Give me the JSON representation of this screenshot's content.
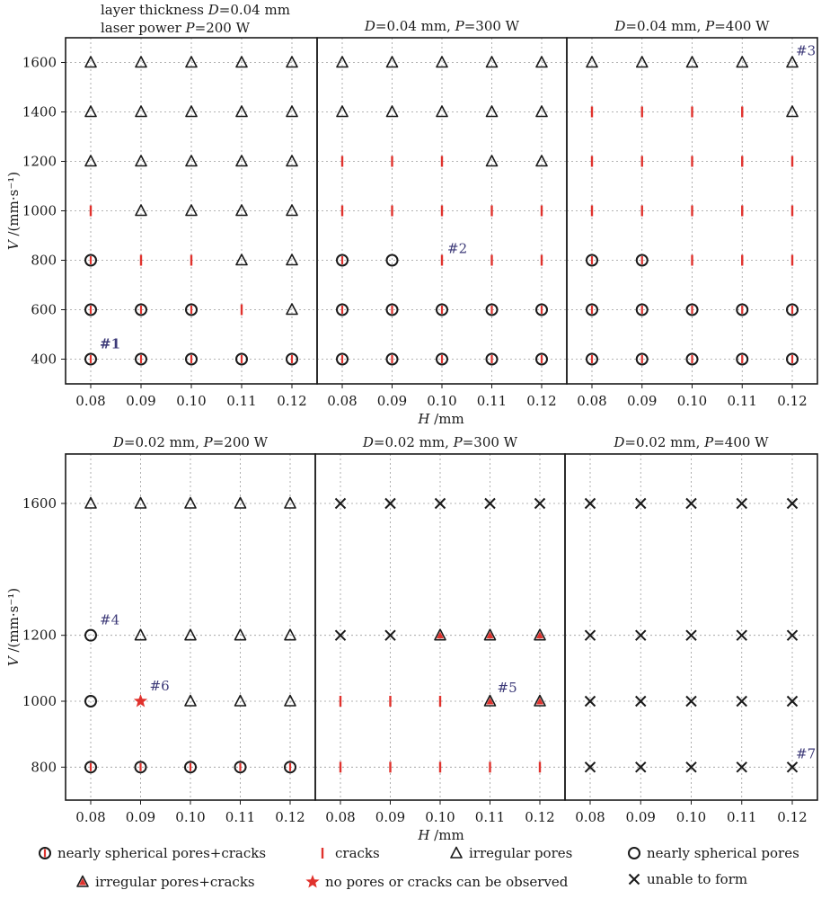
{
  "chart_data": {
    "type": "scatter",
    "x_label": "H /mm",
    "y_label": "V /(mm·s⁻¹)",
    "x_ticks": [
      "0.08",
      "0.09",
      "0.10",
      "0.11",
      "0.12"
    ],
    "x_values": [
      0.08,
      0.09,
      0.1,
      0.11,
      0.12
    ],
    "colors": {
      "red": "#e0322d",
      "black": "#1a1a1a",
      "grid": "#9a9a9a",
      "annot": "#3d3a78"
    },
    "legend": [
      {
        "code": "SC",
        "label": "nearly spherical pores+cracks"
      },
      {
        "code": "C",
        "label": "cracks"
      },
      {
        "code": "T",
        "label": "irregular pores"
      },
      {
        "code": "S",
        "label": "nearly spherical pores"
      },
      {
        "code": "TC",
        "label": "irregular pores+cracks"
      },
      {
        "code": "ST",
        "label": "no pores or cracks can be observed"
      },
      {
        "code": "X",
        "label": "unable to form"
      }
    ],
    "rows": [
      {
        "y_ticks": [
          400,
          600,
          800,
          1000,
          1200,
          1400,
          1600
        ],
        "y_range": [
          300,
          1700
        ],
        "panels": [
          {
            "title_lines": [
              "layer thickness D=0.04 mm",
              "laser power P=200 W"
            ],
            "grid": {
              "1600": [
                "T",
                "T",
                "T",
                "T",
                "T"
              ],
              "1400": [
                "T",
                "T",
                "T",
                "T",
                "T"
              ],
              "1200": [
                "T",
                "T",
                "T",
                "T",
                "T"
              ],
              "1000": [
                "C",
                "T",
                "T",
                "T",
                "T"
              ],
              "800": [
                "SC",
                "C",
                "C",
                "T",
                "T"
              ],
              "600": [
                "SC",
                "SC",
                "SC",
                "C",
                "T"
              ],
              "400": [
                "SC",
                "SC",
                "SC",
                "SC",
                "SC"
              ]
            },
            "annotations": [
              {
                "text": "#1",
                "x": 0.08,
                "y": 400
              }
            ]
          },
          {
            "title": "D=0.04 mm, P=300 W",
            "grid": {
              "1600": [
                "T",
                "T",
                "T",
                "T",
                "T"
              ],
              "1400": [
                "T",
                "T",
                "T",
                "T",
                "T"
              ],
              "1200": [
                "C",
                "C",
                "C",
                "T",
                "T"
              ],
              "1000": [
                "C",
                "C",
                "C",
                "C",
                "C"
              ],
              "800": [
                "SC",
                "S",
                "C",
                "C",
                "C"
              ],
              "600": [
                "SC",
                "SC",
                "SC",
                "SC",
                "SC"
              ],
              "400": [
                "SC",
                "SC",
                "SC",
                "SC",
                "SC"
              ]
            },
            "annotations": [
              {
                "text": "#2",
                "x": 0.1,
                "y": 800
              }
            ]
          },
          {
            "title": "D=0.04 mm, P=400 W",
            "grid": {
              "1600": [
                "T",
                "T",
                "T",
                "T",
                "T"
              ],
              "1400": [
                "C",
                "C",
                "C",
                "C",
                "T"
              ],
              "1200": [
                "C",
                "C",
                "C",
                "C",
                "C"
              ],
              "1000": [
                "C",
                "C",
                "C",
                "C",
                "C"
              ],
              "800": [
                "SC",
                "SC",
                "C",
                "C",
                "C"
              ],
              "600": [
                "SC",
                "SC",
                "SC",
                "SC",
                "SC"
              ],
              "400": [
                "SC",
                "SC",
                "SC",
                "SC",
                "SC"
              ]
            },
            "annotations": [
              {
                "text": "#3",
                "x": 0.12,
                "y": 1600
              }
            ]
          }
        ]
      },
      {
        "y_ticks": [
          800,
          1000,
          1200,
          1600
        ],
        "y_range": [
          700,
          1750
        ],
        "panels": [
          {
            "title": "D=0.02 mm, P=200 W",
            "grid": {
              "1600": [
                "T",
                "T",
                "T",
                "T",
                "T"
              ],
              "1200": [
                "S",
                "T",
                "T",
                "T",
                "T"
              ],
              "1000": [
                "S",
                "ST",
                "T",
                "T",
                "T"
              ],
              "800": [
                "SC",
                "SC",
                "SC",
                "SC",
                "SC"
              ]
            },
            "annotations": [
              {
                "text": "#4",
                "x": 0.08,
                "y": 1200
              },
              {
                "text": "#6",
                "x": 0.09,
                "y": 1000
              }
            ]
          },
          {
            "title": "D=0.02 mm, P=300 W",
            "grid": {
              "1600": [
                "X",
                "X",
                "X",
                "X",
                "X"
              ],
              "1200": [
                "X",
                "X",
                "TC",
                "TC",
                "TC"
              ],
              "1000": [
                "C",
                "C",
                "C",
                "TC",
                "TC"
              ],
              "800": [
                "C",
                "C",
                "C",
                "C",
                "C"
              ]
            },
            "annotations": [
              {
                "text": "#5",
                "x": 0.11,
                "y": 1000
              }
            ]
          },
          {
            "title": "D=0.02 mm, P=400 W",
            "grid": {
              "1600": [
                "X",
                "X",
                "X",
                "X",
                "X"
              ],
              "1200": [
                "X",
                "X",
                "X",
                "X",
                "X"
              ],
              "1000": [
                "X",
                "X",
                "X",
                "X",
                "X"
              ],
              "800": [
                "X",
                "X",
                "X",
                "X",
                "X"
              ]
            },
            "annotations": [
              {
                "text": "#7",
                "x": 0.12,
                "y": 800
              }
            ]
          }
        ]
      }
    ]
  }
}
